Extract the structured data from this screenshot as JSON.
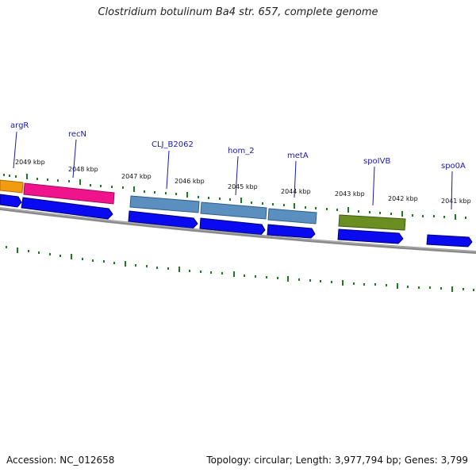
{
  "title": "Clostridium botulinum Ba4 str. 657, complete genome",
  "footer": {
    "accession_label": "Accession: NC_012658",
    "summary": "Topology: circular; Length: 3,977,794 bp; Genes: 3,799"
  },
  "colors": {
    "backbone": "#8a8a8a",
    "tick": "#1e7a1e",
    "cds": "#0a0af0",
    "label": "#1a1aa8",
    "orange": "#f29a10",
    "pink": "#f0148c",
    "steelblue": "#5b8fc0",
    "olive": "#6b8e23"
  },
  "kbp_labels": [
    "2049 kbp",
    "2048 kbp",
    "2047 kbp",
    "2046 kbp",
    "2045 kbp",
    "2044 kbp",
    "2043 kbp",
    "2042 kbp",
    "2041 kbp"
  ],
  "gene_labels": [
    "argR",
    "recN",
    "CLJ_B2062",
    "hom_2",
    "metA",
    "spoIVB",
    "spo0A"
  ]
}
